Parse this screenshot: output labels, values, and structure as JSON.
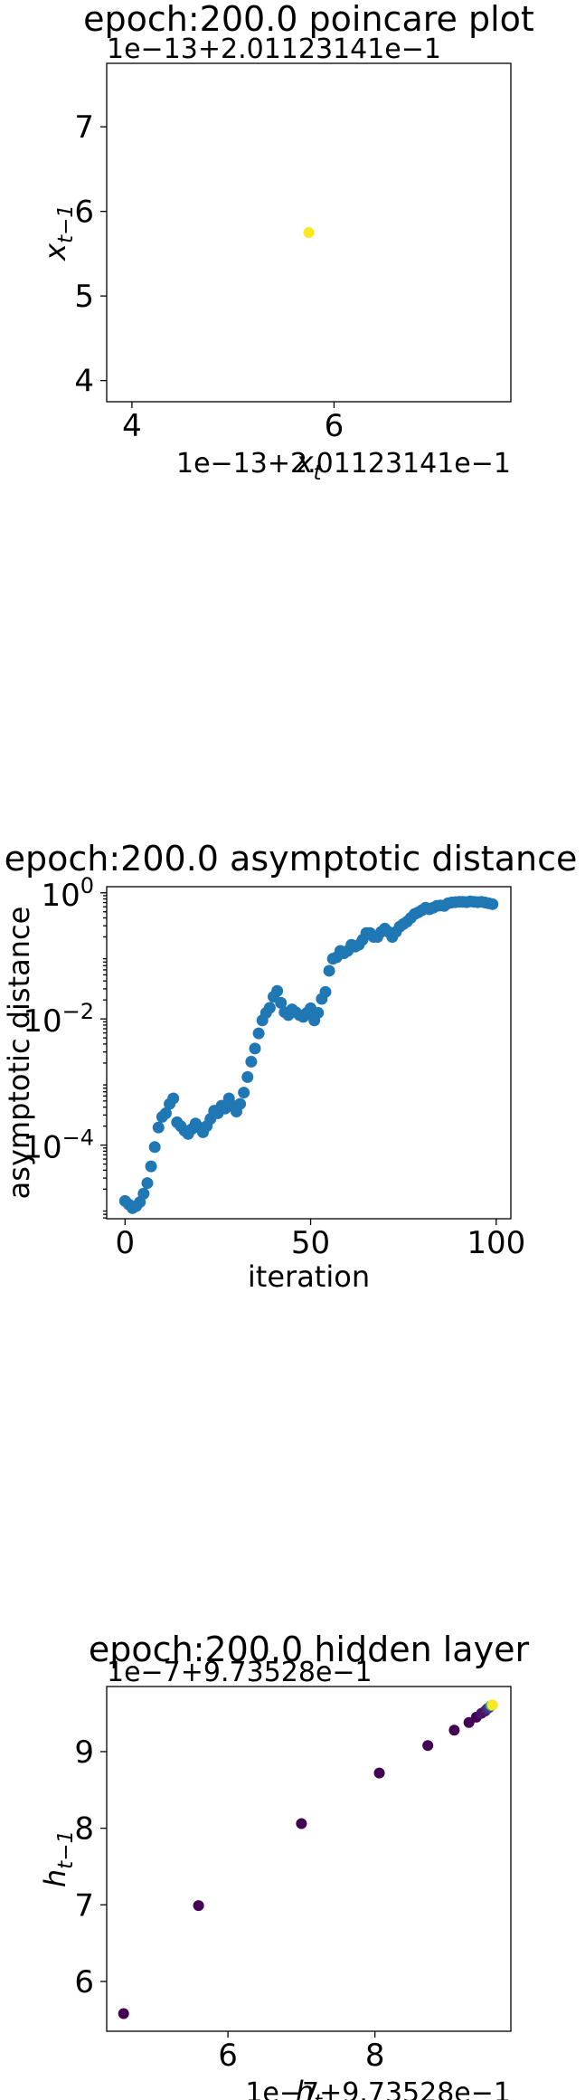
{
  "chart_data": [
    {
      "type": "scatter",
      "title": "epoch:200.0 poincare plot",
      "xlabel": "x_t",
      "ylabel": "x_{t-1}",
      "x_offset_label": "1e−13+2.01123141e−1",
      "y_offset_label": "1e−13+2.01123141e−1",
      "xlim": [
        3.75,
        7.75
      ],
      "ylim": [
        3.75,
        7.75
      ],
      "xticks": [
        {
          "v": 4,
          "label": "4"
        },
        {
          "v": 6,
          "label": "6"
        }
      ],
      "yticks": [
        {
          "v": 4,
          "label": "4"
        },
        {
          "v": 5,
          "label": "5"
        },
        {
          "v": 6,
          "label": "6"
        },
        {
          "v": 7,
          "label": "7"
        }
      ],
      "points": [
        {
          "x": 5.75,
          "y": 5.75
        }
      ],
      "point_color": "#fde725",
      "grid": false,
      "legend": "none"
    },
    {
      "type": "scatter",
      "title": "epoch:200.0 asymptotic distance",
      "xlabel": "iteration",
      "ylabel": "asymptotic distance",
      "yscale": "log",
      "xlim": [
        -4.95,
        103.95
      ],
      "ylim": [
        6.8e-06,
        1.25
      ],
      "xticks": [
        {
          "v": 0,
          "label": "0"
        },
        {
          "v": 50,
          "label": "50"
        },
        {
          "v": 100,
          "label": "100"
        }
      ],
      "yticks": [
        {
          "v": 0.0001,
          "base": "10",
          "exp": "−4"
        },
        {
          "v": 0.01,
          "base": "10",
          "exp": "−2"
        },
        {
          "v": 1,
          "base": "10",
          "exp": "0"
        }
      ],
      "point_color": "#1f77b4",
      "x": [
        0,
        1,
        2,
        3,
        4,
        5,
        6,
        7,
        8,
        9,
        10,
        11,
        12,
        13,
        14,
        15,
        16,
        17,
        18,
        19,
        20,
        21,
        22,
        23,
        24,
        25,
        26,
        27,
        28,
        29,
        30,
        31,
        32,
        33,
        34,
        35,
        36,
        37,
        38,
        39,
        40,
        41,
        42,
        43,
        44,
        45,
        46,
        47,
        48,
        49,
        50,
        51,
        52,
        53,
        54,
        55,
        56,
        57,
        58,
        59,
        60,
        61,
        62,
        63,
        64,
        65,
        66,
        67,
        68,
        69,
        70,
        71,
        72,
        73,
        74,
        75,
        76,
        77,
        78,
        79,
        80,
        81,
        82,
        83,
        84,
        85,
        86,
        87,
        88,
        89,
        90,
        91,
        92,
        93,
        94,
        95,
        96,
        97,
        98,
        99
      ],
      "y": [
        1.3e-05,
        1.15e-05,
        1e-05,
        1.08e-05,
        1.25e-05,
        1.7e-05,
        2.5e-05,
        4.6e-05,
        9.3e-05,
        0.00019,
        0.00028,
        0.00032,
        0.00045,
        0.00055,
        0.00023,
        0.0002,
        0.00017,
        0.00015,
        0.00018,
        0.00022,
        0.00019,
        0.00016,
        0.0002,
        0.00026,
        0.00035,
        0.00032,
        0.00042,
        0.00038,
        0.00055,
        0.00042,
        0.00034,
        0.00045,
        0.00068,
        0.0012,
        0.0021,
        0.0034,
        0.0059,
        0.0095,
        0.0125,
        0.015,
        0.0225,
        0.0278,
        0.018,
        0.0128,
        0.0115,
        0.0142,
        0.0128,
        0.0115,
        0.0108,
        0.0125,
        0.0148,
        0.0095,
        0.0125,
        0.0208,
        0.0268,
        0.058,
        0.09,
        0.095,
        0.12,
        0.11,
        0.12,
        0.15,
        0.14,
        0.15,
        0.18,
        0.23,
        0.23,
        0.2,
        0.2,
        0.24,
        0.27,
        0.24,
        0.2,
        0.24,
        0.29,
        0.32,
        0.35,
        0.4,
        0.46,
        0.49,
        0.53,
        0.58,
        0.55,
        0.58,
        0.62,
        0.63,
        0.62,
        0.68,
        0.7,
        0.71,
        0.72,
        0.72,
        0.71,
        0.73,
        0.72,
        0.71,
        0.72,
        0.7,
        0.68,
        0.66
      ],
      "grid": false,
      "legend": "none"
    },
    {
      "type": "scatter",
      "title": "epoch:200.0 hidden layer",
      "xlabel": "h_t",
      "ylabel": "h_{t-1}",
      "x_offset_label": "1e−7+9.73528e−1",
      "y_offset_label": "1e−7+9.73528e−1",
      "xlim": [
        4.35,
        9.85
      ],
      "ylim": [
        5.35,
        9.85
      ],
      "xticks": [
        {
          "v": 6,
          "label": "6"
        },
        {
          "v": 8,
          "label": "8"
        }
      ],
      "yticks": [
        {
          "v": 6,
          "label": "6"
        },
        {
          "v": 7,
          "label": "7"
        },
        {
          "v": 8,
          "label": "8"
        },
        {
          "v": 9,
          "label": "9"
        }
      ],
      "points": [
        {
          "x": 4.58,
          "y": 5.58
        },
        {
          "x": 5.6,
          "y": 6.99
        },
        {
          "x": 7.0,
          "y": 8.06
        },
        {
          "x": 8.06,
          "y": 8.72
        },
        {
          "x": 8.72,
          "y": 9.08
        },
        {
          "x": 9.08,
          "y": 9.28
        },
        {
          "x": 9.28,
          "y": 9.38
        },
        {
          "x": 9.38,
          "y": 9.45
        },
        {
          "x": 9.45,
          "y": 9.5
        },
        {
          "x": 9.5,
          "y": 9.53
        },
        {
          "x": 9.53,
          "y": 9.56
        },
        {
          "x": 9.56,
          "y": 9.58
        },
        {
          "x": 9.58,
          "y": 9.6
        },
        {
          "x": 9.6,
          "y": 9.61
        }
      ],
      "point_colors": [
        "#440154",
        "#440154",
        "#440154",
        "#440154",
        "#440154",
        "#440154",
        "#440154",
        "#440154",
        "#471365",
        "#48186a",
        "#472d7b",
        "#443983",
        "#35b779",
        "#fde725"
      ],
      "grid": false,
      "legend": "none"
    }
  ]
}
